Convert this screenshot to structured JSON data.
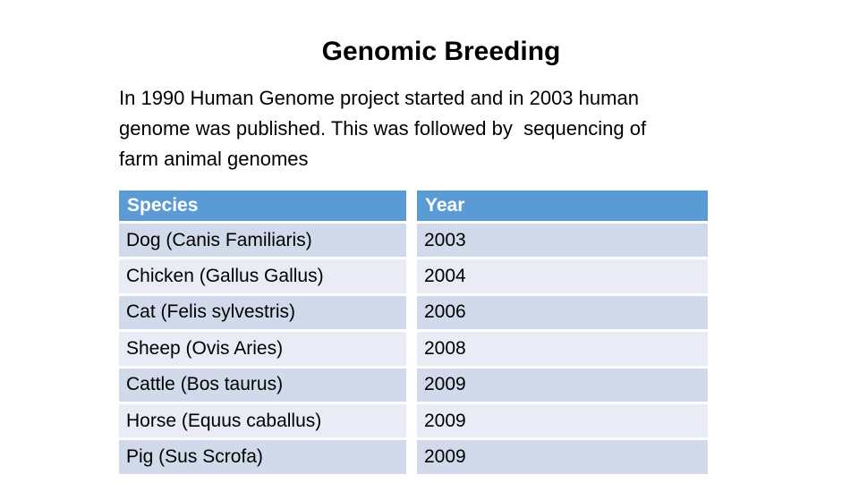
{
  "slide": {
    "title": "Genomic Breeding",
    "paragraph": {
      "text": "In 1990 Human Genome project started and in 2003 human genome was published. This was followed by  sequencing of farm animal genomes",
      "lines": [
        "In 1990 Human Genome project started and in 2003 human",
        "genome was published. This was followed by  sequencing of",
        "farm animal genomes"
      ]
    },
    "background_color": "#FFFFFF",
    "text_color": "#000000"
  },
  "table": {
    "columns": [
      "Species",
      "Year"
    ],
    "rows": [
      {
        "species": "Dog (Canis Familiaris)",
        "year": "2003"
      },
      {
        "species": "Chicken (Gallus Gallus)",
        "year": "2004"
      },
      {
        "species": "Cat (Felis sylvestris)",
        "year": "2006"
      },
      {
        "species": "Sheep (Ovis Aries)",
        "year": "2008"
      },
      {
        "species": "Cattle (Bos taurus)",
        "year": "2009"
      },
      {
        "species": "Horse (Equus caballus)",
        "year": "2009"
      },
      {
        "species": "Pig (Sus Scrofa)",
        "year": "2009"
      }
    ],
    "colors": {
      "header_bg": "#5B9BD5",
      "header_text": "#FFFFFF",
      "row_odd_bg": "#D1DAEA",
      "row_even_bg": "#E9ECF4",
      "row_text": "#000000"
    }
  }
}
